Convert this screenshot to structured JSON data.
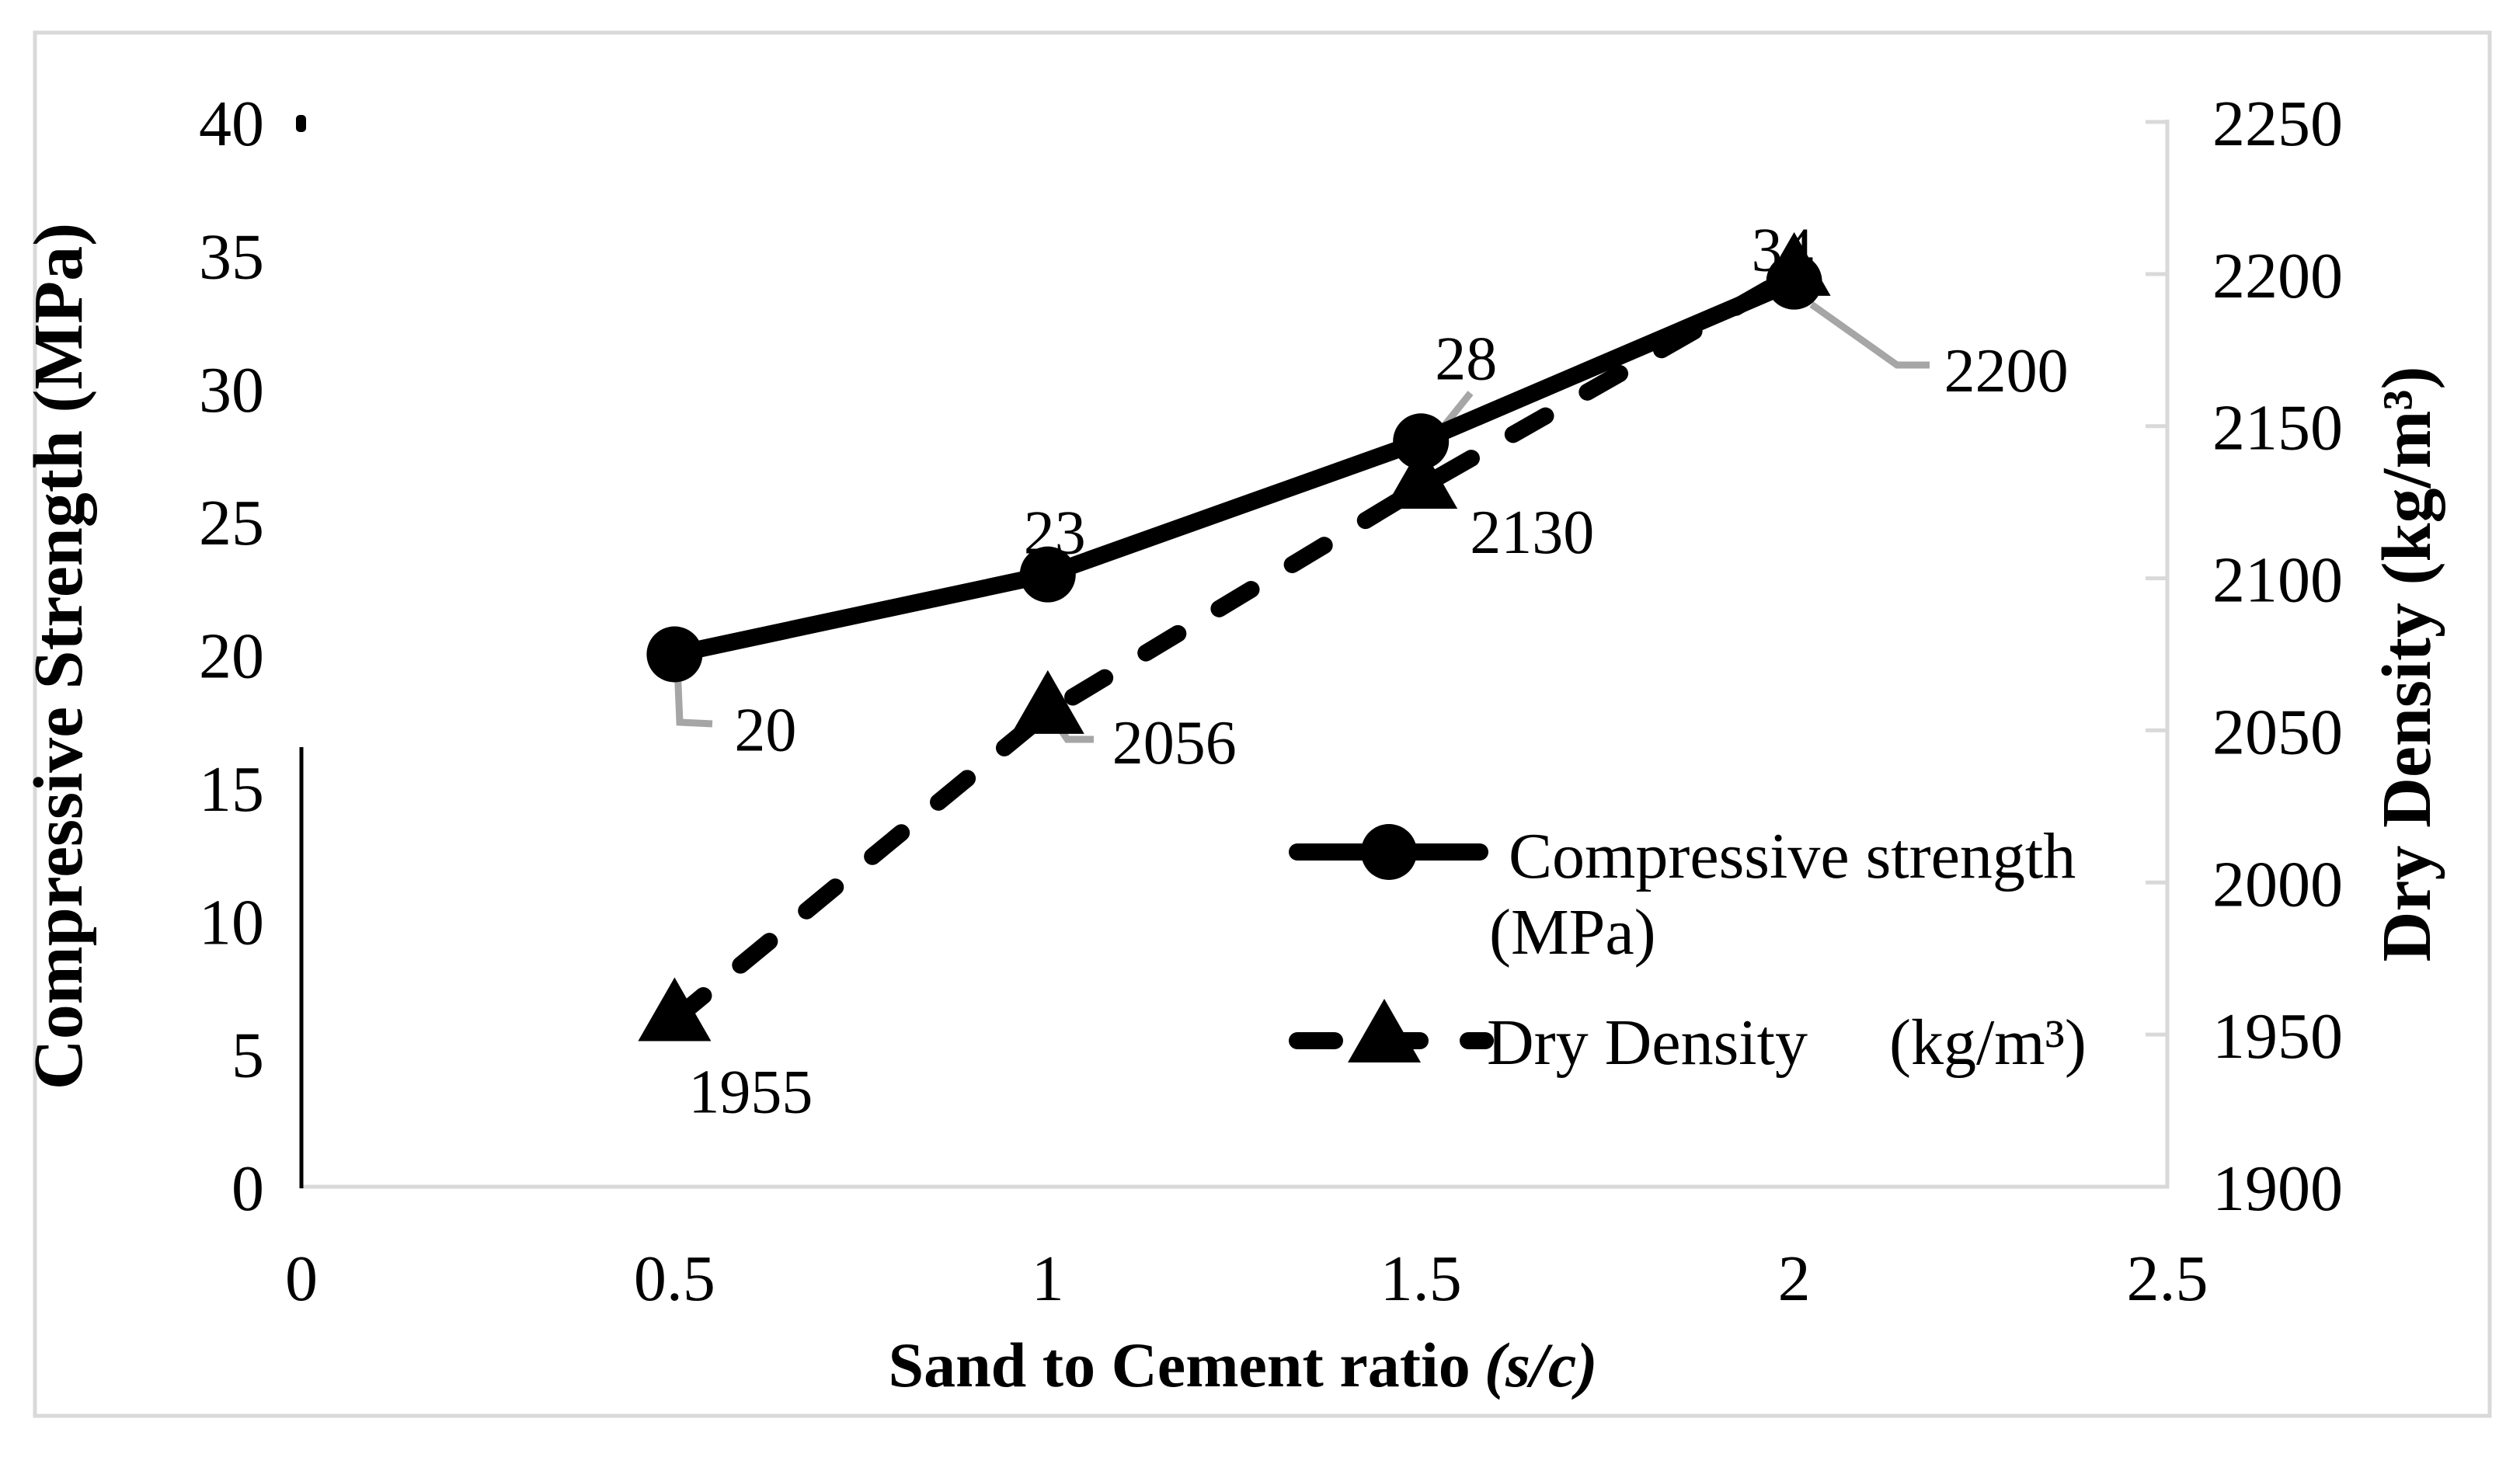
{
  "chart_data": {
    "type": "line",
    "x": [
      0.5,
      1,
      1.5,
      2
    ],
    "series": [
      {
        "name": "Compressive strength (MPa)",
        "axis": "left",
        "values": [
          20,
          23,
          28,
          34
        ],
        "data_labels": [
          "20",
          "23",
          "28",
          "34"
        ],
        "line_style": "solid",
        "marker": "circle",
        "color": "#000000"
      },
      {
        "name": "Dry Density (kg/m³)",
        "axis": "right",
        "values": [
          1955,
          2056,
          2130,
          2200
        ],
        "data_labels": [
          "1955",
          "2056",
          "2130",
          "2200"
        ],
        "line_style": "dashed",
        "marker": "triangle",
        "color": "#000000"
      }
    ],
    "xlabel": "Sand to Cement ratio",
    "xlabel_suffix": "(s/c)",
    "ylabel_left": "Compressive Strength (MPa)",
    "ylabel_right": "Dry Density (kg/m³)",
    "xlim": [
      0,
      2.5
    ],
    "ylim_left": [
      0,
      40
    ],
    "ylim_right": [
      1900,
      2250
    ],
    "x_tick_labels": [
      "0",
      "0.5",
      "1",
      "1.5",
      "2",
      "2.5"
    ],
    "left_tick_labels": [
      "0",
      "5",
      "10",
      "15",
      "20",
      "25",
      "30",
      "35",
      "40"
    ],
    "right_tick_labels": [
      "1900",
      "1950",
      "2000",
      "2050",
      "2100",
      "2150",
      "2200",
      "2250"
    ],
    "grid": false,
    "legend_position": "inside-right",
    "colors": {
      "series": "#000000",
      "leader_line": "#a6a6a6",
      "axis_line": "#d9d9d9"
    }
  },
  "legend": {
    "entries": [
      {
        "label": "Compressive strength",
        "unit": "(MPa)"
      },
      {
        "label": "Dry Density",
        "unit": "(kg/m³)"
      }
    ]
  }
}
